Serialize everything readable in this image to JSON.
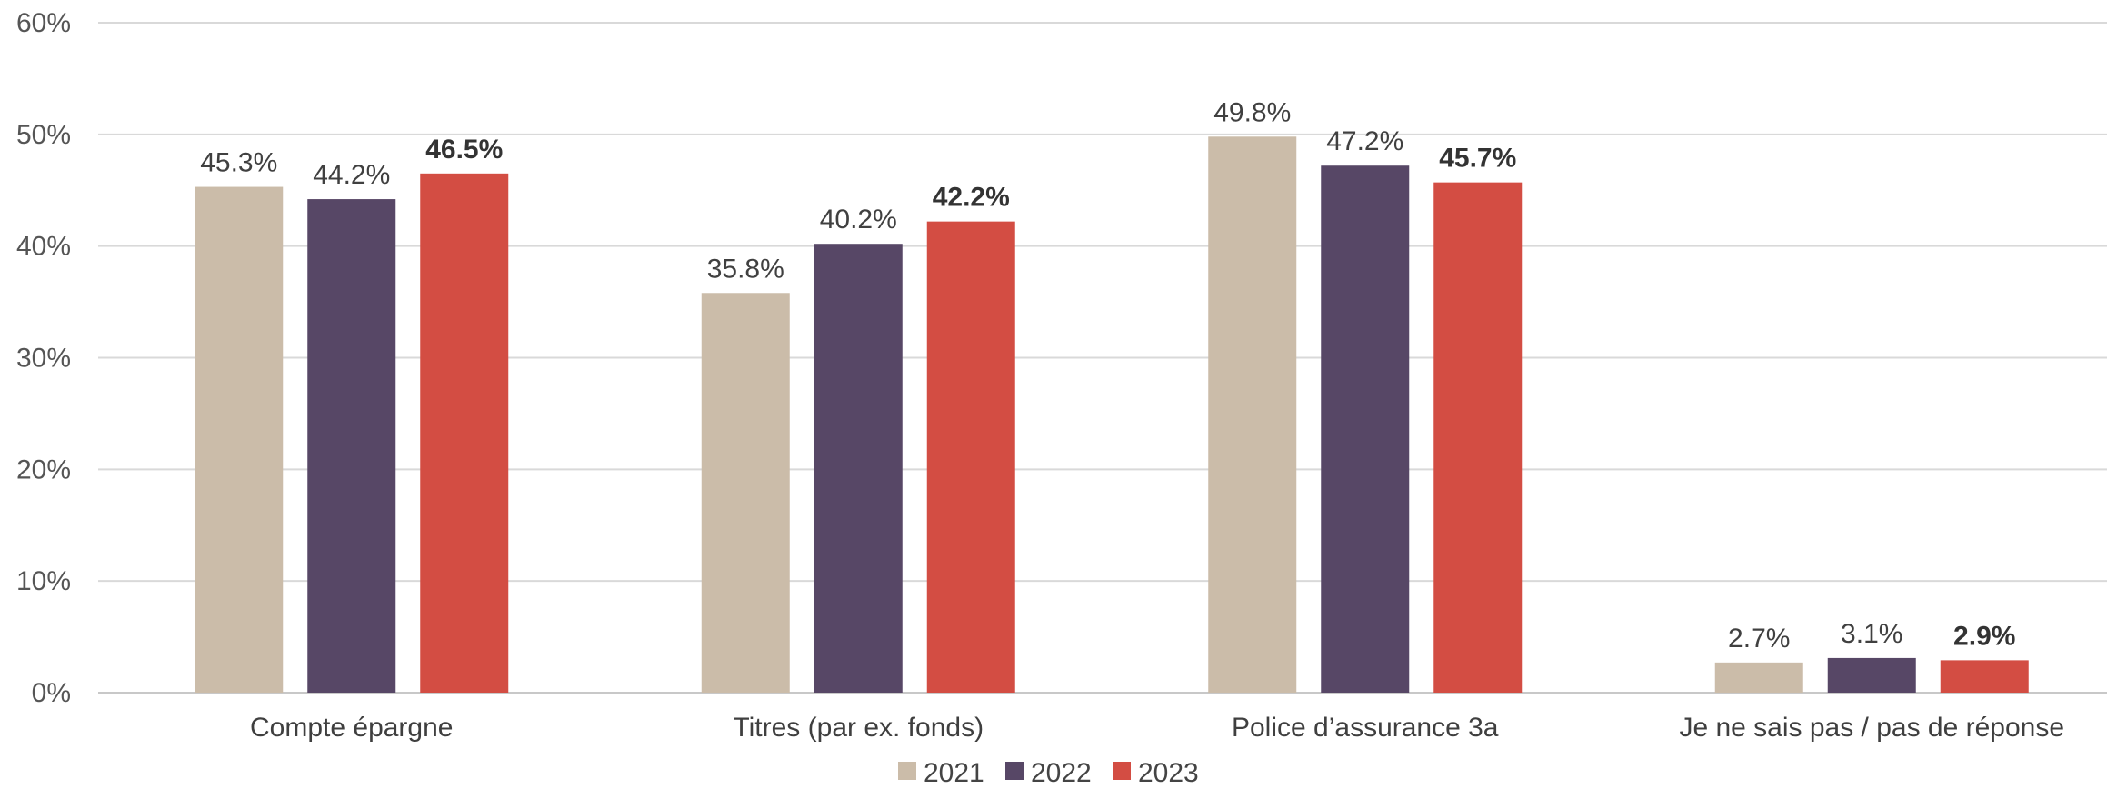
{
  "chart_data": {
    "type": "bar",
    "title": "",
    "xlabel": "",
    "ylabel": "",
    "ylim": [
      0,
      60
    ],
    "yticks": [
      {
        "value": 0,
        "label": "0%"
      },
      {
        "value": 10,
        "label": "10%"
      },
      {
        "value": 20,
        "label": "20%"
      },
      {
        "value": 30,
        "label": "30%"
      },
      {
        "value": 40,
        "label": "40%"
      },
      {
        "value": 50,
        "label": "50%"
      },
      {
        "value": 60,
        "label": "60%"
      }
    ],
    "grid": true,
    "legend_position": "bottom-center",
    "categories": [
      "Compte épargne",
      "Titres (par ex. fonds)",
      "Police d’assurance 3a",
      "Je ne sais pas / pas de réponse"
    ],
    "series": [
      {
        "name": "2021",
        "color": "#cbbca9",
        "values": [
          45.3,
          35.8,
          49.8,
          2.7
        ],
        "labels": [
          "45.3%",
          "35.8%",
          "49.8%",
          "2.7%"
        ],
        "bold_labels": false
      },
      {
        "name": "2022",
        "color": "#574766",
        "values": [
          44.2,
          40.2,
          47.2,
          3.1
        ],
        "labels": [
          "44.2%",
          "40.2%",
          "47.2%",
          "3.1%"
        ],
        "bold_labels": false
      },
      {
        "name": "2023",
        "color": "#d34d43",
        "values": [
          46.5,
          42.2,
          45.7,
          2.9
        ],
        "labels": [
          "46.5%",
          "42.2%",
          "45.7%",
          "2.9%"
        ],
        "bold_labels": true
      }
    ]
  }
}
